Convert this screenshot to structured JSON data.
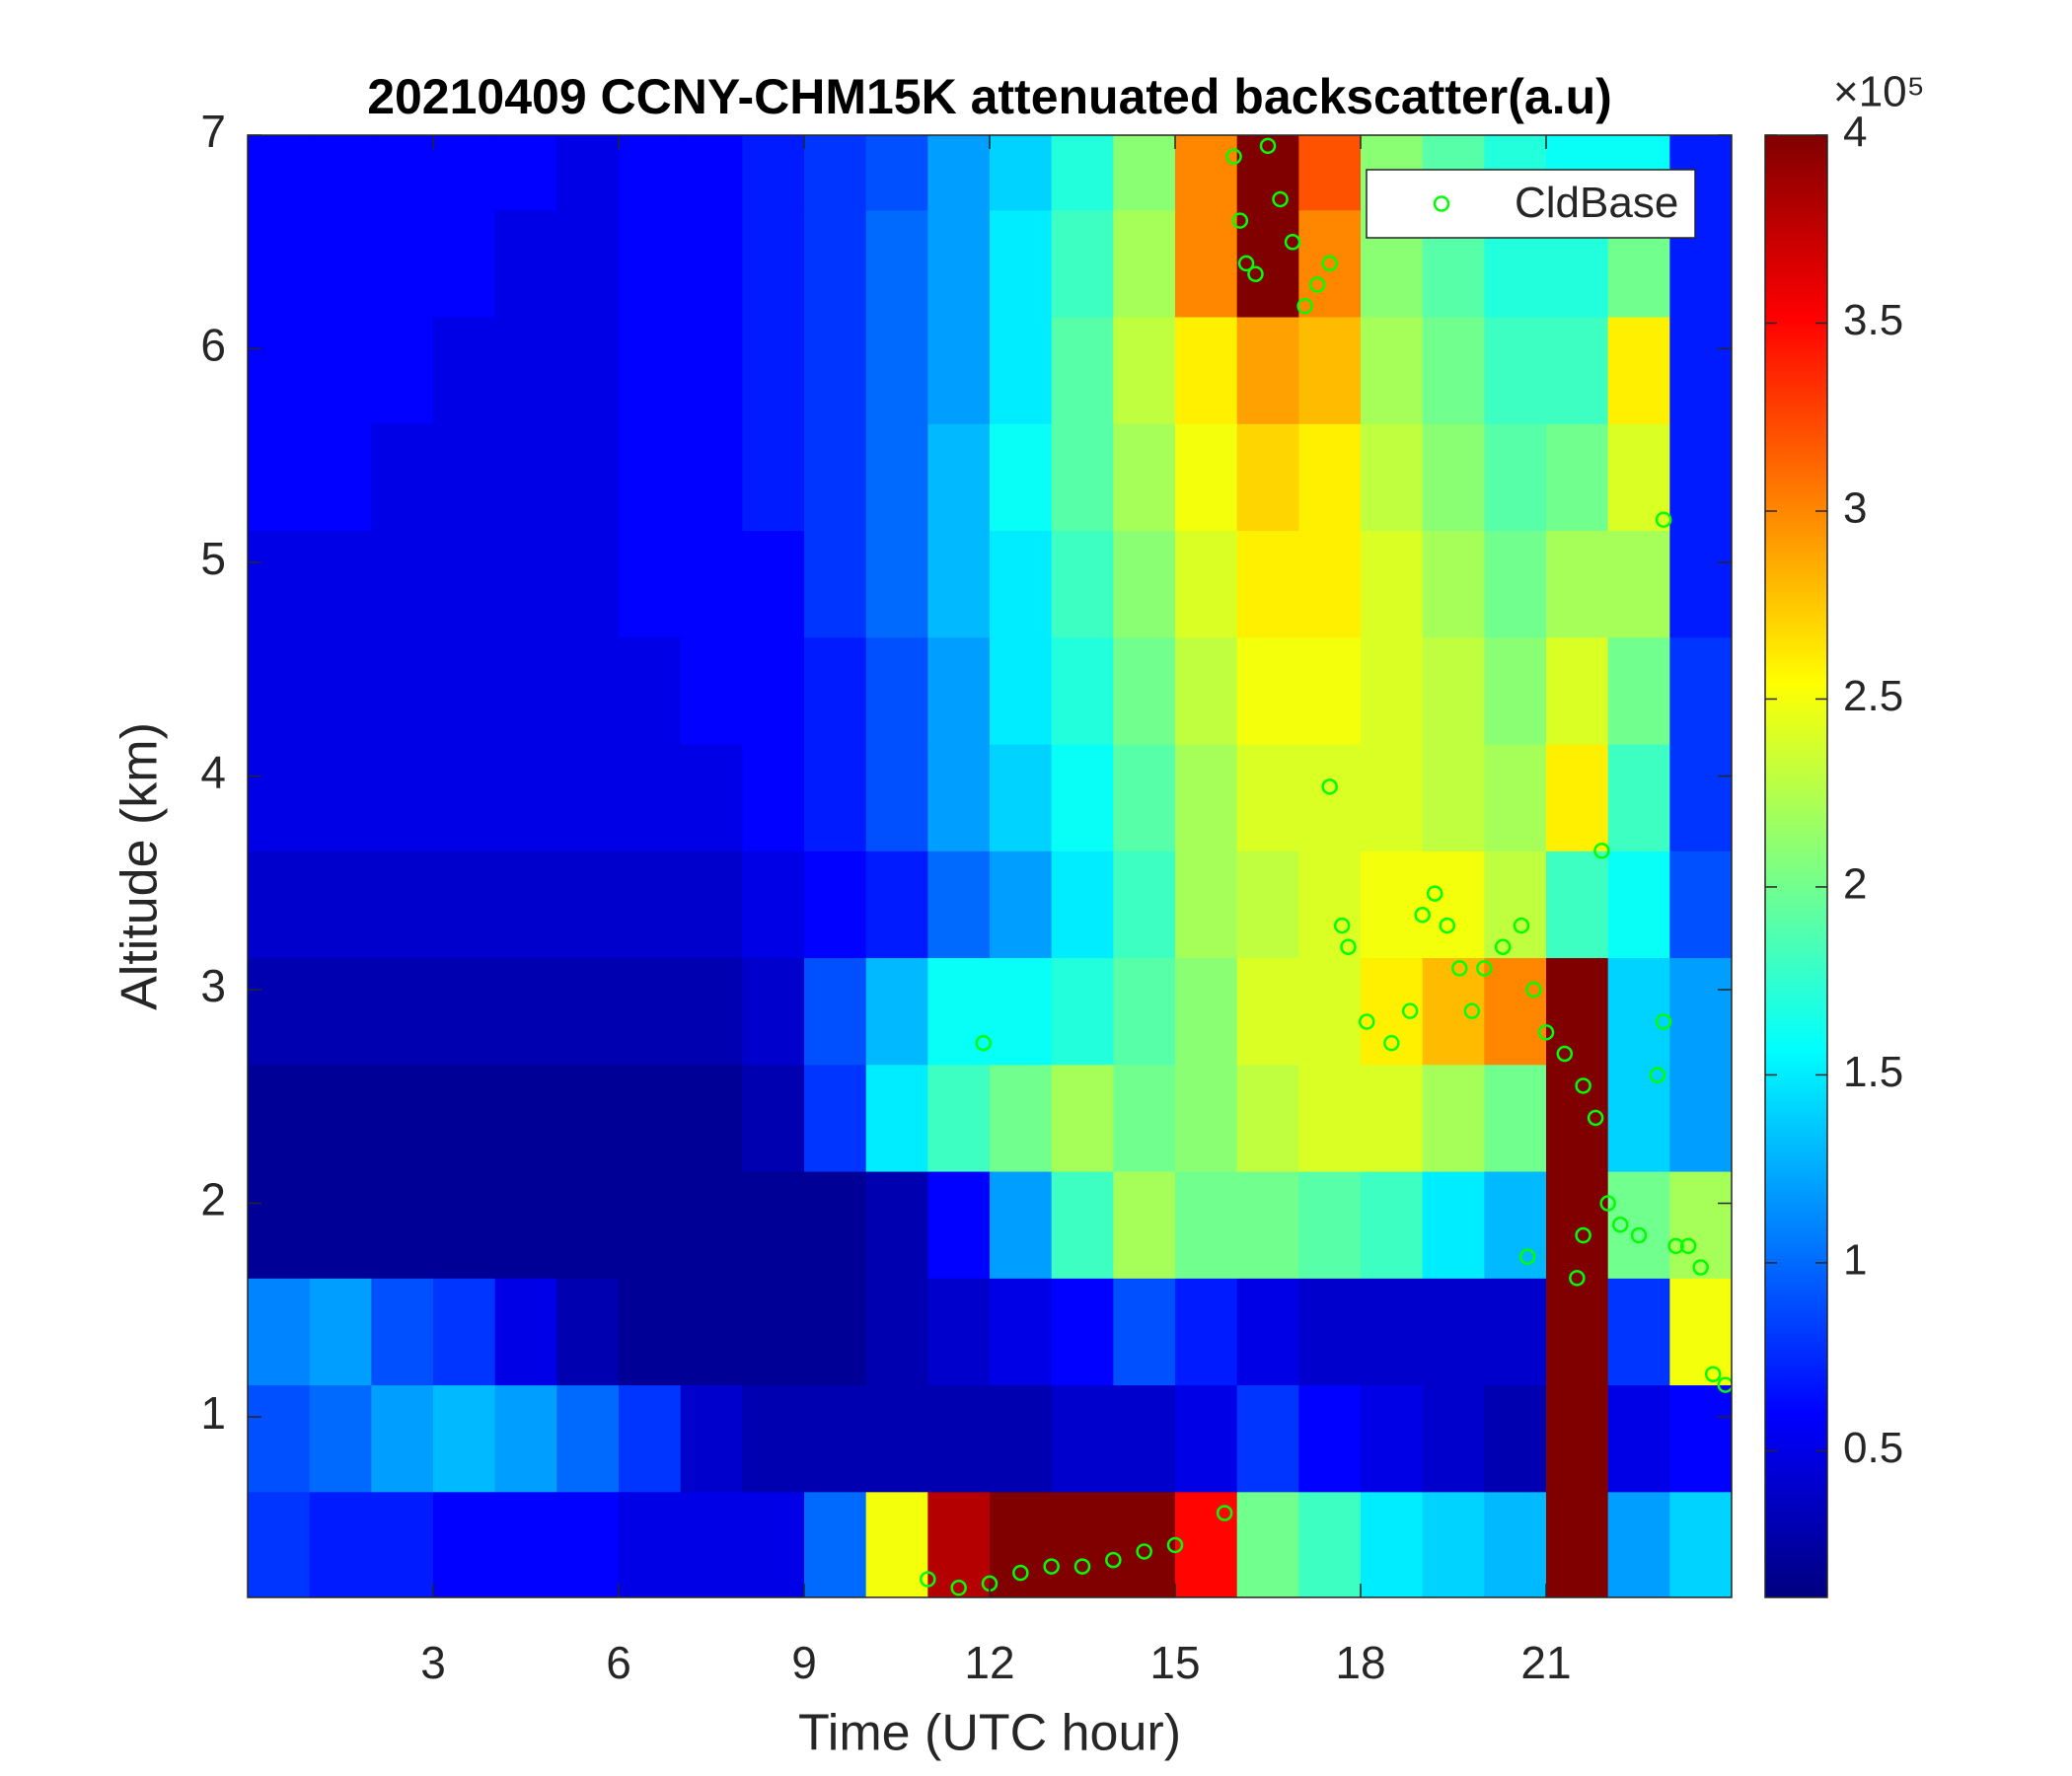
{
  "chart_data": {
    "type": "heatmap",
    "title": "20210409 CCNY-CHM15K attenuated backscatter(a.u)",
    "x_label": "Time (UTC hour)",
    "y_label": "Altitude (km)",
    "colormap": "jet",
    "xlim": [
      0,
      24
    ],
    "ylim": [
      0.155,
      7
    ],
    "xticks": [
      3,
      6,
      9,
      12,
      15,
      18,
      21
    ],
    "yticks": [
      1,
      2,
      3,
      4,
      5,
      6,
      7
    ],
    "clim": [
      0.11,
      4
    ],
    "colorbar_ticks": [
      0.5,
      1,
      1.5,
      2,
      2.5,
      3,
      3.5,
      4
    ],
    "colorbar_label": "×10⁵",
    "legend": "upper right",
    "x": [
      0.5,
      1.5,
      2.5,
      3.5,
      4.5,
      5.5,
      6.5,
      7.5,
      8.5,
      9.5,
      10.5,
      11.5,
      12.5,
      13.5,
      14.5,
      15.5,
      16.5,
      17.5,
      18.5,
      19.5,
      20.5,
      21.5,
      22.5,
      23.5
    ],
    "y": [
      0.4,
      0.9,
      1.4,
      1.9,
      2.4,
      2.9,
      3.4,
      3.9,
      4.4,
      4.9,
      5.4,
      5.9,
      6.4,
      6.9
    ],
    "z": [
      [
        0.8,
        0.7,
        0.7,
        0.6,
        0.6,
        0.6,
        0.5,
        0.5,
        0.5,
        1.0,
        2.5,
        3.8,
        4,
        4,
        4,
        3.5,
        2,
        1.8,
        1.5,
        1.4,
        1.3,
        4,
        1.2,
        1.4
      ],
      [
        0.9,
        1.0,
        1.2,
        1.3,
        1.2,
        1.0,
        0.8,
        0.4,
        0.3,
        0.3,
        0.3,
        0.3,
        0.3,
        0.4,
        0.4,
        0.5,
        0.8,
        0.6,
        0.5,
        0.4,
        0.3,
        4,
        0.5,
        0.6
      ],
      [
        1.1,
        1.2,
        0.9,
        0.8,
        0.5,
        0.3,
        0.2,
        0.2,
        0.2,
        0.2,
        0.3,
        0.4,
        0.5,
        0.6,
        0.9,
        0.7,
        0.5,
        0.4,
        0.4,
        0.4,
        0.4,
        4,
        0.8,
        2.5
      ],
      [
        0.2,
        0.2,
        0.2,
        0.2,
        0.2,
        0.2,
        0.2,
        0.2,
        0.2,
        0.2,
        0.3,
        0.6,
        1.2,
        1.8,
        2.2,
        2.0,
        2.0,
        1.9,
        1.8,
        1.5,
        1.3,
        4,
        2.0,
        2.2
      ],
      [
        0.2,
        0.2,
        0.2,
        0.2,
        0.2,
        0.2,
        0.2,
        0.2,
        0.3,
        0.8,
        1.5,
        1.8,
        2.0,
        2.2,
        2.0,
        2.1,
        2.3,
        2.4,
        2.4,
        2.2,
        2.0,
        4,
        1.4,
        1.2
      ],
      [
        0.3,
        0.3,
        0.3,
        0.3,
        0.3,
        0.3,
        0.3,
        0.3,
        0.4,
        0.9,
        1.3,
        1.6,
        1.6,
        1.7,
        1.9,
        2.1,
        2.4,
        2.4,
        2.6,
        2.8,
        3.0,
        4,
        1.4,
        1.2
      ],
      [
        0.4,
        0.4,
        0.4,
        0.4,
        0.4,
        0.4,
        0.4,
        0.4,
        0.5,
        0.6,
        0.7,
        1.0,
        1.2,
        1.5,
        1.8,
        2.2,
        2.3,
        2.4,
        2.5,
        2.5,
        2.3,
        1.8,
        1.6,
        0.9
      ],
      [
        0.5,
        0.5,
        0.5,
        0.5,
        0.5,
        0.5,
        0.5,
        0.5,
        0.6,
        0.7,
        0.9,
        1.2,
        1.4,
        1.6,
        1.9,
        2.2,
        2.4,
        2.4,
        2.4,
        2.3,
        2.2,
        2.6,
        1.8,
        0.8
      ],
      [
        0.5,
        0.5,
        0.5,
        0.5,
        0.5,
        0.5,
        0.5,
        0.6,
        0.6,
        0.7,
        0.9,
        1.2,
        1.5,
        1.7,
        2.0,
        2.3,
        2.5,
        2.5,
        2.4,
        2.3,
        2.1,
        2.4,
        2.0,
        0.8
      ],
      [
        0.5,
        0.5,
        0.5,
        0.5,
        0.5,
        0.5,
        0.6,
        0.6,
        0.6,
        0.8,
        1.0,
        1.3,
        1.5,
        1.8,
        2.1,
        2.4,
        2.6,
        2.6,
        2.4,
        2.2,
        2.0,
        2.2,
        2.2,
        0.7
      ],
      [
        0.6,
        0.6,
        0.5,
        0.5,
        0.5,
        0.5,
        0.6,
        0.6,
        0.7,
        0.8,
        1.0,
        1.3,
        1.6,
        1.9,
        2.2,
        2.5,
        2.7,
        2.6,
        2.3,
        2.1,
        1.9,
        2.0,
        2.4,
        0.7
      ],
      [
        0.6,
        0.6,
        0.6,
        0.5,
        0.5,
        0.5,
        0.6,
        0.6,
        0.7,
        0.8,
        1.0,
        1.2,
        1.5,
        1.9,
        2.3,
        2.6,
        2.9,
        2.8,
        2.2,
        2.0,
        1.8,
        1.8,
        2.6,
        0.7
      ],
      [
        0.6,
        0.6,
        0.6,
        0.6,
        0.5,
        0.5,
        0.6,
        0.6,
        0.7,
        0.8,
        1.0,
        1.2,
        1.5,
        1.8,
        2.2,
        3.0,
        4,
        3.0,
        2.1,
        1.9,
        1.7,
        1.7,
        2.0,
        0.7
      ],
      [
        0.6,
        0.6,
        0.6,
        0.6,
        0.6,
        0.5,
        0.6,
        0.6,
        0.7,
        0.8,
        0.9,
        1.2,
        1.4,
        1.7,
        2.1,
        3.0,
        4,
        3.2,
        2.1,
        1.9,
        1.7,
        1.6,
        1.6,
        0.7
      ]
    ],
    "series": [
      {
        "name": "CldBase",
        "type": "scatter",
        "color": "#00ff00",
        "x": [
          15.95,
          16.05,
          16.15,
          16.3,
          16.5,
          16.7,
          16.9,
          17.1,
          17.3,
          17.5,
          17.5,
          17.7,
          17.8,
          18.1,
          18.5,
          18.8,
          19.0,
          19.2,
          19.4,
          19.6,
          19.8,
          20.0,
          20.3,
          20.6,
          20.8,
          21.0,
          21.3,
          21.6,
          21.8,
          21.9,
          22.0,
          22.2,
          22.5,
          22.8,
          22.9,
          22.9,
          23.1,
          23.3,
          23.5,
          23.7,
          23.9,
          20.7,
          21.5,
          21.6,
          11.9,
          11.0,
          11.5,
          12.0,
          12.5,
          13.0,
          13.5,
          14.0,
          14.5,
          15.0,
          15.8
        ],
        "y": [
          6.9,
          6.6,
          6.4,
          6.35,
          6.95,
          6.7,
          6.5,
          6.2,
          6.3,
          6.4,
          3.95,
          3.3,
          3.2,
          2.85,
          2.75,
          2.9,
          3.35,
          3.45,
          3.3,
          3.1,
          2.9,
          3.1,
          3.2,
          3.3,
          3.0,
          2.8,
          2.7,
          2.55,
          2.4,
          3.65,
          2.0,
          1.9,
          1.85,
          2.6,
          2.85,
          5.2,
          1.8,
          1.8,
          1.7,
          1.2,
          1.15,
          1.75,
          1.65,
          1.85,
          2.75,
          0.24,
          0.2,
          0.22,
          0.27,
          0.3,
          0.3,
          0.33,
          0.37,
          0.4,
          0.55
        ]
      }
    ]
  }
}
